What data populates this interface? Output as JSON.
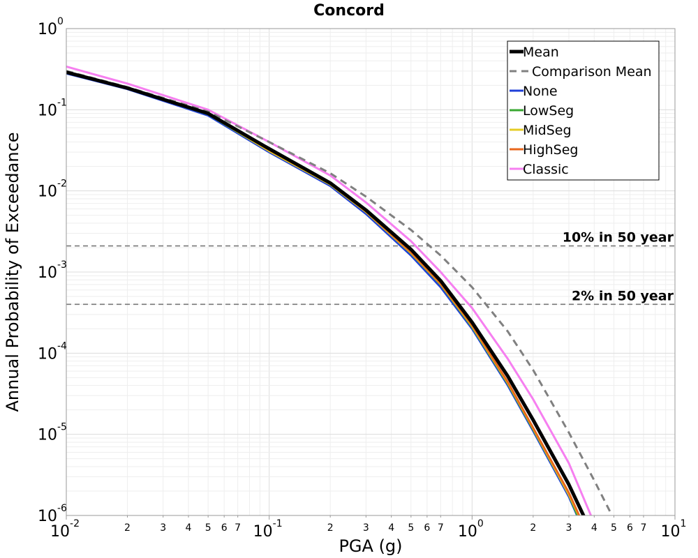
{
  "chart_data": {
    "type": "line",
    "title": "Concord",
    "xlabel": "PGA (g)",
    "ylabel": "Annual Probability of Exceedance",
    "xscale": "log",
    "yscale": "log",
    "xlim": [
      0.01,
      10
    ],
    "ylim": [
      1e-06,
      1
    ],
    "grid": true,
    "legend_position": "top-right",
    "x_major_ticks": [
      {
        "value": 0.01,
        "base": "10",
        "exp": "-2"
      },
      {
        "value": 0.1,
        "base": "10",
        "exp": "-1"
      },
      {
        "value": 1,
        "base": "10",
        "exp": "0"
      },
      {
        "value": 10,
        "base": "10",
        "exp": "1"
      }
    ],
    "x_minor_ticks": [
      {
        "value": 0.02,
        "label": "2"
      },
      {
        "value": 0.03,
        "label": "3"
      },
      {
        "value": 0.04,
        "label": "4"
      },
      {
        "value": 0.05,
        "label": "5"
      },
      {
        "value": 0.06,
        "label": "6"
      },
      {
        "value": 0.07,
        "label": "7"
      },
      {
        "value": 0.2,
        "label": "2"
      },
      {
        "value": 0.3,
        "label": "3"
      },
      {
        "value": 0.4,
        "label": "4"
      },
      {
        "value": 0.5,
        "label": "5"
      },
      {
        "value": 0.6,
        "label": "6"
      },
      {
        "value": 0.7,
        "label": "7"
      },
      {
        "value": 2,
        "label": "2"
      },
      {
        "value": 3,
        "label": "3"
      },
      {
        "value": 4,
        "label": "4"
      },
      {
        "value": 5,
        "label": "5"
      },
      {
        "value": 6,
        "label": "6"
      },
      {
        "value": 7,
        "label": "7"
      }
    ],
    "y_major_ticks": [
      {
        "value": 1,
        "base": "10",
        "exp": "0"
      },
      {
        "value": 0.1,
        "base": "10",
        "exp": "-1"
      },
      {
        "value": 0.01,
        "base": "10",
        "exp": "-2"
      },
      {
        "value": 0.001,
        "base": "10",
        "exp": "-3"
      },
      {
        "value": 0.0001,
        "base": "10",
        "exp": "-4"
      },
      {
        "value": 1e-05,
        "base": "10",
        "exp": "-5"
      },
      {
        "value": 1e-06,
        "base": "10",
        "exp": "-6"
      }
    ],
    "reference_lines": [
      {
        "label": "10% in 50 year",
        "y": 0.0021
      },
      {
        "label": "2% in 50 year",
        "y": 0.0004
      }
    ],
    "series": [
      {
        "name": "None",
        "color": "#1f3fd8",
        "width": 3,
        "dash": "",
        "points": [
          [
            0.01,
            0.28
          ],
          [
            0.02,
            0.18
          ],
          [
            0.05,
            0.085
          ],
          [
            0.1,
            0.03
          ],
          [
            0.2,
            0.0115
          ],
          [
            0.3,
            0.0052
          ],
          [
            0.5,
            0.0016
          ],
          [
            0.7,
            0.00065
          ],
          [
            1,
            0.0002
          ],
          [
            1.5,
            4e-05
          ],
          [
            2,
            1.1e-05
          ],
          [
            3,
            1.7e-06
          ],
          [
            3.6,
            6e-07
          ]
        ]
      },
      {
        "name": "LowSeg",
        "color": "#3aa832",
        "width": 3,
        "dash": "",
        "points": [
          [
            0.01,
            0.285
          ],
          [
            0.02,
            0.183
          ],
          [
            0.05,
            0.088
          ],
          [
            0.1,
            0.031
          ],
          [
            0.2,
            0.012
          ],
          [
            0.3,
            0.0055
          ],
          [
            0.5,
            0.0017
          ],
          [
            0.7,
            0.0007
          ],
          [
            1,
            0.00021
          ],
          [
            1.5,
            4.2e-05
          ],
          [
            2,
            1.15e-05
          ],
          [
            3,
            1.8e-06
          ],
          [
            3.6,
            6e-07
          ]
        ]
      },
      {
        "name": "MidSeg",
        "color": "#e5cc25",
        "width": 3,
        "dash": "",
        "points": [
          [
            0.01,
            0.286
          ],
          [
            0.02,
            0.184
          ],
          [
            0.05,
            0.089
          ],
          [
            0.1,
            0.031
          ],
          [
            0.2,
            0.012
          ],
          [
            0.3,
            0.0055
          ],
          [
            0.5,
            0.00172
          ],
          [
            0.7,
            0.00071
          ],
          [
            1,
            0.000215
          ],
          [
            1.5,
            4.3e-05
          ],
          [
            2,
            1.18e-05
          ],
          [
            3,
            1.8e-06
          ],
          [
            3.7,
            6e-07
          ]
        ]
      },
      {
        "name": "HighSeg",
        "color": "#e8671c",
        "width": 3,
        "dash": "",
        "points": [
          [
            0.01,
            0.287
          ],
          [
            0.02,
            0.185
          ],
          [
            0.05,
            0.09
          ],
          [
            0.1,
            0.032
          ],
          [
            0.2,
            0.0122
          ],
          [
            0.3,
            0.0056
          ],
          [
            0.5,
            0.00175
          ],
          [
            0.7,
            0.00072
          ],
          [
            1,
            0.00022
          ],
          [
            1.5,
            4.4e-05
          ],
          [
            2,
            1.2e-05
          ],
          [
            3,
            1.9e-06
          ],
          [
            3.7,
            6e-07
          ]
        ]
      },
      {
        "name": "Classic",
        "color": "#f67ff0",
        "width": 3,
        "dash": "",
        "points": [
          [
            0.01,
            0.34
          ],
          [
            0.02,
            0.21
          ],
          [
            0.05,
            0.1
          ],
          [
            0.1,
            0.04
          ],
          [
            0.2,
            0.0155
          ],
          [
            0.3,
            0.0072
          ],
          [
            0.5,
            0.0024
          ],
          [
            0.7,
            0.001
          ],
          [
            1,
            0.00036
          ],
          [
            1.5,
            8.5e-05
          ],
          [
            2,
            2.7e-05
          ],
          [
            3,
            4.4e-06
          ],
          [
            4.2,
            6e-07
          ]
        ]
      },
      {
        "name": "Comparison Mean",
        "color": "#808080",
        "width": 3,
        "dash": "10,7",
        "points": [
          [
            0.01,
            0.3
          ],
          [
            0.02,
            0.19
          ],
          [
            0.05,
            0.095
          ],
          [
            0.1,
            0.04
          ],
          [
            0.2,
            0.0165
          ],
          [
            0.3,
            0.0085
          ],
          [
            0.5,
            0.0033
          ],
          [
            0.7,
            0.0016
          ],
          [
            1,
            0.00065
          ],
          [
            1.5,
            0.000185
          ],
          [
            2,
            6.2e-05
          ],
          [
            3,
            1.05e-05
          ],
          [
            4,
            2.7e-06
          ],
          [
            5,
            9e-07
          ]
        ]
      },
      {
        "name": "Mean",
        "color": "#000000",
        "width": 5,
        "dash": "",
        "points": [
          [
            0.01,
            0.29
          ],
          [
            0.02,
            0.185
          ],
          [
            0.05,
            0.09
          ],
          [
            0.1,
            0.033
          ],
          [
            0.2,
            0.0125
          ],
          [
            0.3,
            0.0058
          ],
          [
            0.5,
            0.0019
          ],
          [
            0.7,
            0.00078
          ],
          [
            1,
            0.00024
          ],
          [
            1.5,
            5.2e-05
          ],
          [
            2,
            1.5e-05
          ],
          [
            3,
            2.4e-06
          ],
          [
            3.9,
            6e-07
          ]
        ]
      }
    ],
    "legend_order": [
      "Mean",
      "Comparison Mean",
      "None",
      "LowSeg",
      "MidSeg",
      "HighSeg",
      "Classic"
    ]
  }
}
